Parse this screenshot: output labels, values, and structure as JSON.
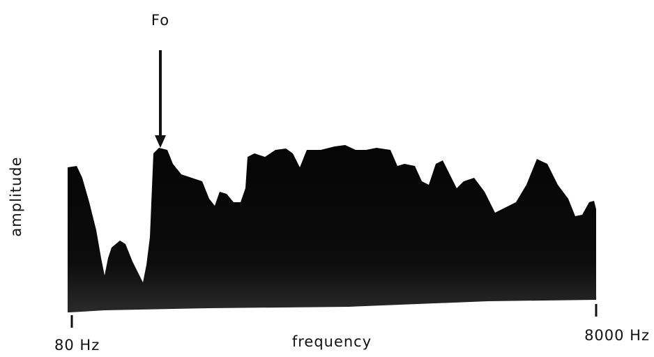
{
  "labels": {
    "marker": "Fo",
    "y_axis": "amplitude",
    "x_axis": "frequency",
    "x_start": "80 Hz",
    "x_end": "8000 Hz"
  }
}
